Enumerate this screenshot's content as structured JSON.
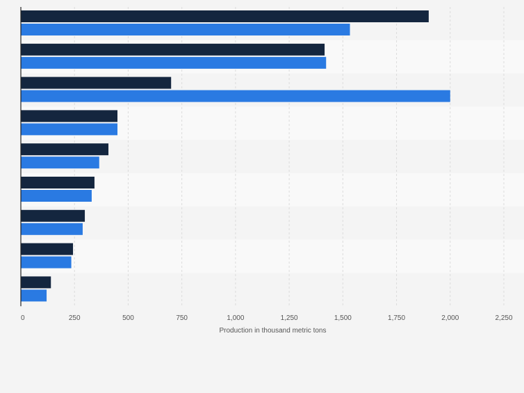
{
  "colors": {
    "page_background": "#f4f4f4",
    "band_a": "#f4f4f4",
    "band_b": "#f9f9f9",
    "gridline": "#dcdcdc",
    "axis_line": "#222222",
    "tick_label": "#555555",
    "series_1": "#14263f",
    "series_2": "#2a7ae2"
  },
  "chart_data": {
    "type": "bar",
    "orientation": "horizontal",
    "title": "",
    "xlabel": "Production in thousand metric tons",
    "ylabel": "",
    "xlim": [
      0,
      2250
    ],
    "x_ticks": [
      0,
      250,
      500,
      750,
      1000,
      1250,
      1500,
      1750,
      2000,
      2250
    ],
    "x_tick_labels": [
      "0",
      "250",
      "500",
      "750",
      "1,000",
      "1,250",
      "1,500",
      "1,750",
      "2,000",
      "2,250"
    ],
    "categories": [
      "",
      "",
      "",
      "",
      "",
      "",
      "",
      "",
      ""
    ],
    "series": [
      {
        "color": "#14263f",
        "values": [
          1900,
          1415,
          700,
          450,
          408,
          343,
          298,
          243,
          140
        ]
      },
      {
        "color": "#2a7ae2",
        "values": [
          1533,
          1422,
          2000,
          450,
          365,
          330,
          288,
          235,
          120
        ]
      }
    ],
    "grid": true,
    "legend": "none"
  }
}
